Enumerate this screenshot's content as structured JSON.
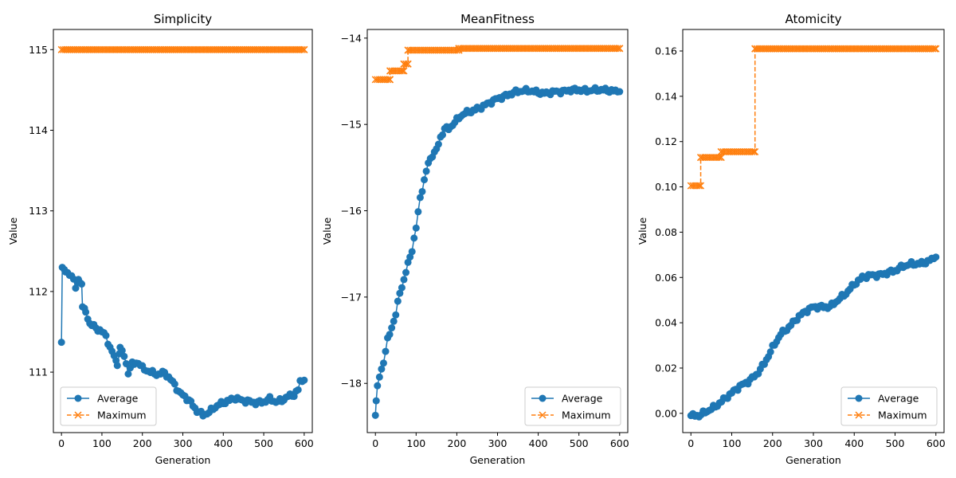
{
  "colors": {
    "average": "#1f77b4",
    "maximum": "#ff7f0e"
  },
  "chart_data": [
    {
      "type": "line",
      "title": "Simplicity",
      "xlabel": "Generation",
      "ylabel": "Value",
      "xlim": [
        -20,
        620
      ],
      "ylim": [
        110.25,
        115.25
      ],
      "xticks": [
        0,
        100,
        200,
        300,
        400,
        500,
        600
      ],
      "yticks": [
        111,
        112,
        113,
        114,
        115
      ],
      "ytick_labels": [
        "111",
        "112",
        "113",
        "114",
        "115"
      ],
      "legend_loc": "lower left",
      "legend": [
        "Average",
        "Maximum"
      ],
      "series": [
        {
          "name": "Average",
          "style": "solid-circle",
          "keypoints": [
            [
              0,
              111.37
            ],
            [
              2,
              112.28
            ],
            [
              10,
              112.25
            ],
            [
              25,
              112.2
            ],
            [
              35,
              112.05
            ],
            [
              42,
              112.15
            ],
            [
              50,
              112.1
            ],
            [
              52,
              111.8
            ],
            [
              60,
              111.75
            ],
            [
              70,
              111.6
            ],
            [
              85,
              111.55
            ],
            [
              100,
              111.5
            ],
            [
              110,
              111.45
            ],
            [
              120,
              111.3
            ],
            [
              130,
              111.2
            ],
            [
              138,
              111.1
            ],
            [
              145,
              111.3
            ],
            [
              155,
              111.2
            ],
            [
              165,
              111.0
            ],
            [
              175,
              111.1
            ],
            [
              190,
              111.12
            ],
            [
              200,
              111.05
            ],
            [
              220,
              111.0
            ],
            [
              240,
              110.97
            ],
            [
              255,
              111.0
            ],
            [
              265,
              110.93
            ],
            [
              280,
              110.85
            ],
            [
              290,
              110.75
            ],
            [
              305,
              110.7
            ],
            [
              320,
              110.62
            ],
            [
              335,
              110.52
            ],
            [
              350,
              110.47
            ],
            [
              365,
              110.5
            ],
            [
              375,
              110.55
            ],
            [
              390,
              110.6
            ],
            [
              400,
              110.62
            ],
            [
              415,
              110.65
            ],
            [
              430,
              110.68
            ],
            [
              445,
              110.65
            ],
            [
              460,
              110.64
            ],
            [
              480,
              110.62
            ],
            [
              500,
              110.63
            ],
            [
              515,
              110.67
            ],
            [
              530,
              110.63
            ],
            [
              545,
              110.65
            ],
            [
              560,
              110.7
            ],
            [
              575,
              110.72
            ],
            [
              585,
              110.78
            ],
            [
              590,
              110.88
            ],
            [
              600,
              110.9
            ]
          ]
        },
        {
          "name": "Maximum",
          "style": "dashed-x",
          "keypoints": [
            [
              0,
              115.0
            ],
            [
              600,
              115.0
            ]
          ]
        }
      ]
    },
    {
      "type": "line",
      "title": "MeanFitness",
      "xlabel": "Generation",
      "ylabel": "Value",
      "xlim": [
        -20,
        620
      ],
      "ylim": [
        -18.57,
        -13.9
      ],
      "xticks": [
        0,
        100,
        200,
        300,
        400,
        500,
        600
      ],
      "yticks": [
        -18,
        -17,
        -16,
        -15,
        -14
      ],
      "ytick_labels": [
        "−18",
        "−17",
        "−16",
        "−15",
        "−14"
      ],
      "legend_loc": "lower right",
      "legend": [
        "Average",
        "Maximum"
      ],
      "series": [
        {
          "name": "Average",
          "style": "solid-circle",
          "keypoints": [
            [
              0,
              -18.37
            ],
            [
              2,
              -18.22
            ],
            [
              5,
              -18.05
            ],
            [
              10,
              -17.92
            ],
            [
              20,
              -17.75
            ],
            [
              30,
              -17.5
            ],
            [
              40,
              -17.35
            ],
            [
              50,
              -17.2
            ],
            [
              60,
              -16.95
            ],
            [
              70,
              -16.8
            ],
            [
              80,
              -16.62
            ],
            [
              90,
              -16.45
            ],
            [
              100,
              -16.2
            ],
            [
              110,
              -15.85
            ],
            [
              120,
              -15.65
            ],
            [
              130,
              -15.45
            ],
            [
              140,
              -15.35
            ],
            [
              150,
              -15.3
            ],
            [
              160,
              -15.15
            ],
            [
              170,
              -15.05
            ],
            [
              180,
              -15.05
            ],
            [
              190,
              -15.0
            ],
            [
              200,
              -14.95
            ],
            [
              210,
              -14.9
            ],
            [
              220,
              -14.87
            ],
            [
              240,
              -14.84
            ],
            [
              260,
              -14.8
            ],
            [
              280,
              -14.75
            ],
            [
              300,
              -14.7
            ],
            [
              320,
              -14.67
            ],
            [
              340,
              -14.63
            ],
            [
              360,
              -14.61
            ],
            [
              380,
              -14.61
            ],
            [
              400,
              -14.63
            ],
            [
              420,
              -14.64
            ],
            [
              440,
              -14.62
            ],
            [
              460,
              -14.62
            ],
            [
              480,
              -14.6
            ],
            [
              500,
              -14.6
            ],
            [
              520,
              -14.61
            ],
            [
              540,
              -14.6
            ],
            [
              560,
              -14.6
            ],
            [
              580,
              -14.61
            ],
            [
              600,
              -14.62
            ]
          ]
        },
        {
          "name": "Maximum",
          "style": "dashed-x",
          "keypoints": [
            [
              0,
              -14.48
            ],
            [
              36,
              -14.48
            ],
            [
              36,
              -14.38
            ],
            [
              70,
              -14.38
            ],
            [
              70,
              -14.3
            ],
            [
              80,
              -14.3
            ],
            [
              80,
              -14.14
            ],
            [
              205,
              -14.14
            ],
            [
              205,
              -14.12
            ],
            [
              600,
              -14.12
            ]
          ]
        }
      ]
    },
    {
      "type": "line",
      "title": "Atomicity",
      "xlabel": "Generation",
      "ylabel": "Value",
      "xlim": [
        -20,
        620
      ],
      "ylim": [
        -0.0085,
        0.1695
      ],
      "xticks": [
        0,
        100,
        200,
        300,
        400,
        500,
        600
      ],
      "yticks": [
        0.0,
        0.02,
        0.04,
        0.06,
        0.08,
        0.1,
        0.12,
        0.14,
        0.16
      ],
      "ytick_labels": [
        "0.00",
        "0.02",
        "0.04",
        "0.06",
        "0.08",
        "0.10",
        "0.12",
        "0.14",
        "0.16"
      ],
      "legend_loc": "lower right",
      "legend": [
        "Average",
        "Maximum"
      ],
      "series": [
        {
          "name": "Average",
          "style": "solid-circle",
          "keypoints": [
            [
              0,
              -0.001
            ],
            [
              20,
              -0.001
            ],
            [
              40,
              0.001
            ],
            [
              60,
              0.003
            ],
            [
              80,
              0.006
            ],
            [
              100,
              0.009
            ],
            [
              120,
              0.012
            ],
            [
              140,
              0.014
            ],
            [
              160,
              0.017
            ],
            [
              180,
              0.022
            ],
            [
              200,
              0.029
            ],
            [
              220,
              0.035
            ],
            [
              240,
              0.038
            ],
            [
              260,
              0.042
            ],
            [
              280,
              0.045
            ],
            [
              300,
              0.047
            ],
            [
              320,
              0.047
            ],
            [
              340,
              0.047
            ],
            [
              360,
              0.05
            ],
            [
              380,
              0.053
            ],
            [
              400,
              0.057
            ],
            [
              420,
              0.06
            ],
            [
              440,
              0.061
            ],
            [
              460,
              0.061
            ],
            [
              480,
              0.062
            ],
            [
              500,
              0.063
            ],
            [
              520,
              0.065
            ],
            [
              540,
              0.066
            ],
            [
              560,
              0.066
            ],
            [
              580,
              0.067
            ],
            [
              600,
              0.069
            ]
          ]
        },
        {
          "name": "Maximum",
          "style": "dashed-x",
          "keypoints": [
            [
              0,
              0.1005
            ],
            [
              24,
              0.1005
            ],
            [
              24,
              0.113
            ],
            [
              74,
              0.113
            ],
            [
              74,
              0.1155
            ],
            [
              157,
              0.1155
            ],
            [
              157,
              0.161
            ],
            [
              600,
              0.161
            ]
          ]
        }
      ]
    }
  ]
}
